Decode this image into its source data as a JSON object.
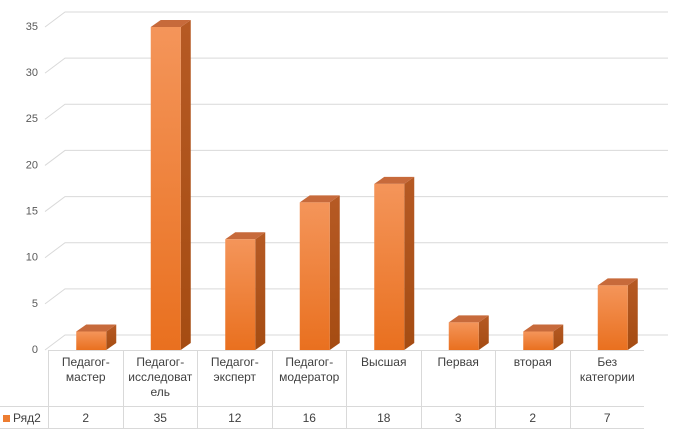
{
  "chart_data": {
    "type": "bar3d",
    "categories": [
      "Педагог-мастер",
      "Педагог-исследователь",
      "Педагог-эксперт",
      "Педагог-модератор",
      "Высшая",
      "Первая",
      "вторая",
      "Без категории"
    ],
    "series": [
      {
        "name": "Ряд2",
        "color": "#ed7d31",
        "values": [
          2,
          35,
          12,
          16,
          18,
          3,
          2,
          7
        ]
      }
    ],
    "ylim": [
      0,
      35
    ],
    "yticks": [
      0,
      5,
      10,
      15,
      20,
      25,
      30,
      35
    ],
    "grid": true
  }
}
